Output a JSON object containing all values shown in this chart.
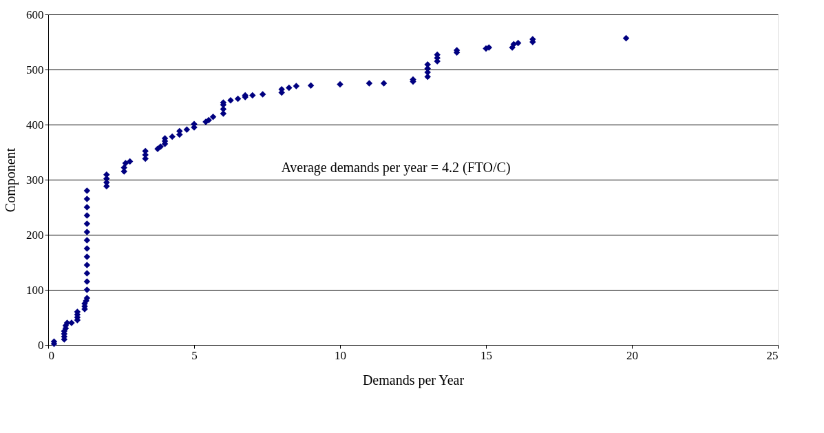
{
  "chart_data": {
    "type": "scatter",
    "xlabel": "Demands per Year",
    "ylabel": "Component",
    "annotations": [
      "Average demands per year = 4.2 (FTO/C)"
    ],
    "xlim": [
      0,
      25
    ],
    "xticks": [
      0,
      5,
      10,
      15,
      20,
      25
    ],
    "ylim": [
      0,
      600
    ],
    "yticks": [
      0,
      100,
      200,
      300,
      400,
      500,
      600
    ],
    "grid": "y",
    "marker": "diamond",
    "series": [
      {
        "color": "#000080",
        "x": [
          0.2,
          0.2,
          0.55,
          0.55,
          0.55,
          0.55,
          0.6,
          0.6,
          0.65,
          0.8,
          1.0,
          1.0,
          1.0,
          1.0,
          1.25,
          1.25,
          1.25,
          1.3,
          1.33,
          1.33,
          1.33,
          1.33,
          1.33,
          1.33,
          1.33,
          1.33,
          1.33,
          1.33,
          1.33,
          1.33,
          1.33,
          1.33,
          2.0,
          2.0,
          2.0,
          2.0,
          2.6,
          2.6,
          2.65,
          2.8,
          3.33,
          3.33,
          3.33,
          3.75,
          3.85,
          4.0,
          4.0,
          4.0,
          4.25,
          4.5,
          4.5,
          4.75,
          5.0,
          5.0,
          5.4,
          5.5,
          5.65,
          6.0,
          6.0,
          6.0,
          6.0,
          6.25,
          6.5,
          6.75,
          6.75,
          7.0,
          7.35,
          8.0,
          8.0,
          8.25,
          8.5,
          9.0,
          10.0,
          11.0,
          11.5,
          12.5,
          12.5,
          13.0,
          13.0,
          13.0,
          13.0,
          13.33,
          13.33,
          13.33,
          14.0,
          14.0,
          15.0,
          15.1,
          15.9,
          15.95,
          16.1,
          16.6,
          16.6,
          19.8
        ],
        "values": [
          2,
          6,
          10,
          15,
          20,
          25,
          30,
          35,
          40,
          40,
          45,
          50,
          55,
          60,
          65,
          70,
          75,
          80,
          85,
          100,
          115,
          130,
          145,
          160,
          175,
          190,
          205,
          220,
          235,
          250,
          265,
          280,
          288,
          295,
          302,
          309,
          315,
          322,
          330,
          333,
          338,
          345,
          352,
          356,
          360,
          365,
          370,
          375,
          378,
          382,
          388,
          391,
          395,
          401,
          405,
          408,
          414,
          420,
          428,
          436,
          440,
          444,
          447,
          450,
          453,
          453,
          455,
          458,
          464,
          467,
          470,
          471,
          473,
          475,
          475,
          478,
          482,
          487,
          495,
          502,
          509,
          515,
          521,
          527,
          531,
          535,
          538,
          540,
          540,
          546,
          548,
          550,
          555,
          557
        ]
      }
    ]
  }
}
